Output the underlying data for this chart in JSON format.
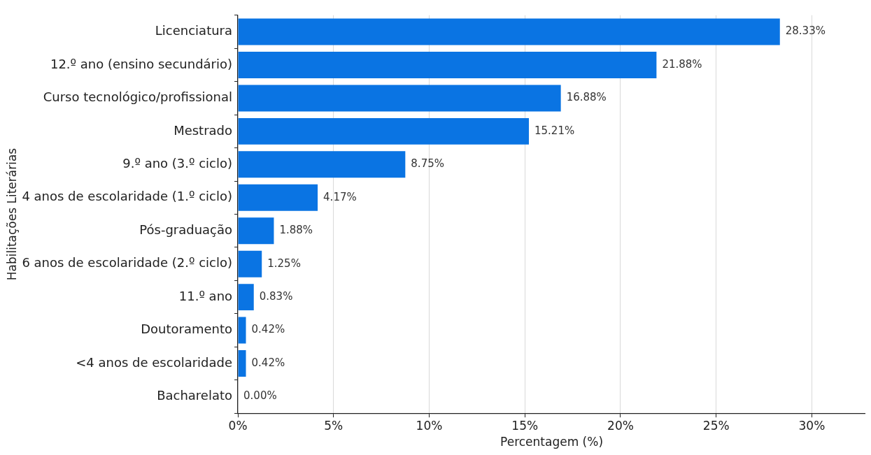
{
  "chart_data": {
    "type": "bar",
    "orientation": "horizontal",
    "xlabel": "Percentagem (%)",
    "ylabel": "Habilitações Literárias",
    "categories": [
      "Licenciatura",
      "12.º ano (ensino secundário)",
      "Curso tecnológico/profissional",
      "Mestrado",
      "9.º ano (3.º ciclo)",
      "4 anos de escolaridade (1.º ciclo)",
      "Pós-graduação",
      "6 anos de escolaridade (2.º ciclo)",
      "11.º ano",
      "Doutoramento",
      "<4 anos de escolaridade",
      "Bacharelato"
    ],
    "values": [
      28.33,
      21.88,
      16.88,
      15.21,
      8.75,
      4.17,
      1.88,
      1.25,
      0.83,
      0.42,
      0.42,
      0.0
    ],
    "value_labels": [
      "28.33%",
      "21.88%",
      "16.88%",
      "15.21%",
      "8.75%",
      "4.17%",
      "1.88%",
      "1.25%",
      "0.83%",
      "0.42%",
      "0.42%",
      "0.00%"
    ],
    "color": "#0a74e3",
    "xlim": [
      0,
      32.8
    ],
    "xticks": [
      {
        "value": 0,
        "label": "0%"
      },
      {
        "value": 5,
        "label": "5%"
      },
      {
        "value": 10,
        "label": "10%"
      },
      {
        "value": 15,
        "label": "15%"
      },
      {
        "value": 20,
        "label": "20%"
      },
      {
        "value": 25,
        "label": "25%"
      },
      {
        "value": 30,
        "label": "30%"
      }
    ],
    "grid": "x",
    "legend": false
  }
}
